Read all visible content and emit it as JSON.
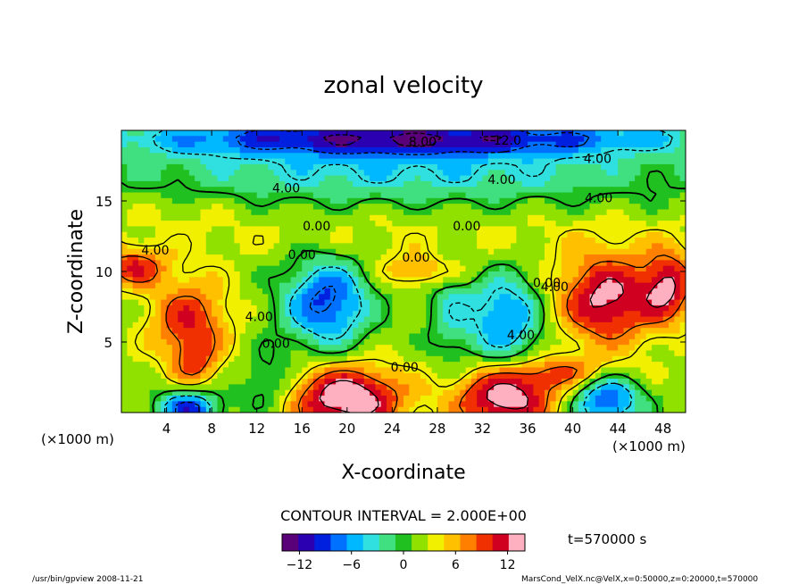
{
  "chart_data": {
    "type": "heatmap",
    "title": "zonal velocity",
    "xlabel": "X-coordinate",
    "ylabel": "Z-coordinate",
    "x_unit_note": "(×1000 m)",
    "y_unit_note": "(×1000 m)",
    "xlim": [
      0,
      50
    ],
    "ylim": [
      0,
      20
    ],
    "x_ticks": [
      4,
      8,
      12,
      16,
      20,
      24,
      28,
      32,
      36,
      40,
      44,
      48
    ],
    "y_ticks": [
      5,
      10,
      15
    ],
    "contour_interval_text": "CONTOUR INTERVAL = 2.000E+00",
    "time_label": "t=570000 s",
    "colorbar": {
      "range": [
        -14,
        14
      ],
      "ticks": [
        -12,
        -6,
        0,
        6,
        12
      ],
      "colors": [
        "#5a0078",
        "#2a00b0",
        "#0020e0",
        "#0070ff",
        "#00b8ff",
        "#30e0e0",
        "#40e080",
        "#20c020",
        "#90e000",
        "#f0f000",
        "#ffc000",
        "#ff8000",
        "#f03000",
        "#d00020",
        "#ffb0c0"
      ]
    },
    "contour_labels": [
      {
        "text": "8.00",
        "x": 26.7,
        "y": 18.9
      },
      {
        "text": "12.0",
        "x": 34.2,
        "y": 19.0
      },
      {
        "text": "4.00",
        "x": 42.2,
        "y": 17.7
      },
      {
        "text": "4.00",
        "x": 33.7,
        "y": 16.2
      },
      {
        "text": "4.00",
        "x": 14.6,
        "y": 15.6
      },
      {
        "text": "4.00",
        "x": 42.3,
        "y": 14.9
      },
      {
        "text": "0.00",
        "x": 17.3,
        "y": 12.9
      },
      {
        "text": "0.00",
        "x": 30.6,
        "y": 12.9
      },
      {
        "text": "4.00",
        "x": 3.0,
        "y": 11.2
      },
      {
        "text": "0.00",
        "x": 16.0,
        "y": 10.9
      },
      {
        "text": "0.00",
        "x": 26.1,
        "y": 10.7
      },
      {
        "text": "0.00",
        "x": 37.7,
        "y": 8.9
      },
      {
        "text": "4.00",
        "x": 38.4,
        "y": 8.6
      },
      {
        "text": "4.00",
        "x": 12.2,
        "y": 6.5
      },
      {
        "text": "0.00",
        "x": 13.7,
        "y": 4.6
      },
      {
        "text": "4.00",
        "x": 35.4,
        "y": 5.2
      },
      {
        "text": "0.00",
        "x": 25.1,
        "y": 2.9
      }
    ],
    "blobs": [
      {
        "x": 6.0,
        "y": 6.5,
        "v": 8.0,
        "rx": 3.5,
        "ry": 3.0
      },
      {
        "x": 6.5,
        "y": 3.3,
        "v": 5.0,
        "rx": 2.0,
        "ry": 1.8
      },
      {
        "x": 1.0,
        "y": 10.3,
        "v": 8.0,
        "rx": 3.0,
        "ry": 1.4
      },
      {
        "x": 18.2,
        "y": 7.8,
        "v": -11.0,
        "rx": 3.8,
        "ry": 3.2
      },
      {
        "x": 34.0,
        "y": 6.7,
        "v": -9.0,
        "rx": 3.5,
        "ry": 3.3
      },
      {
        "x": 43.0,
        "y": 8.0,
        "v": 11.0,
        "rx": 4.5,
        "ry": 3.2
      },
      {
        "x": 48.5,
        "y": 9.0,
        "v": 9.0,
        "rx": 2.2,
        "ry": 2.5
      },
      {
        "x": 20.0,
        "y": 1.0,
        "v": 13.0,
        "rx": 5.0,
        "ry": 2.3
      },
      {
        "x": 34.0,
        "y": 1.0,
        "v": 12.0,
        "rx": 4.5,
        "ry": 2.2
      },
      {
        "x": 6.0,
        "y": 0.3,
        "v": -12.0,
        "rx": 2.6,
        "ry": 1.3
      },
      {
        "x": 43.0,
        "y": 1.0,
        "v": -11.0,
        "rx": 3.0,
        "ry": 2.0
      },
      {
        "x": 13.0,
        "y": 2.0,
        "v": -4.0,
        "rx": 2.5,
        "ry": 2.2
      },
      {
        "x": 29.0,
        "y": 7.5,
        "v": -4.0,
        "rx": 2.0,
        "ry": 4.0
      },
      {
        "x": 27.0,
        "y": 10.0,
        "v": 5.0,
        "rx": 4.0,
        "ry": 1.2
      },
      {
        "x": 25.0,
        "y": 19.5,
        "v": -13.0,
        "rx": 25.0,
        "ry": 1.3
      },
      {
        "x": 25.0,
        "y": 17.0,
        "v": -6.0,
        "rx": 26.0,
        "ry": 2.2
      },
      {
        "x": 25.0,
        "y": 12.5,
        "v": 1.5,
        "rx": 26.0,
        "ry": 2.0
      },
      {
        "x": 40.0,
        "y": 2.8,
        "v": 6.0,
        "rx": 5.0,
        "ry": 1.2
      },
      {
        "x": 5.0,
        "y": 14.5,
        "v": 1.0,
        "rx": 6.0,
        "ry": 1.5
      }
    ],
    "footer_left": "/usr/bin/gpview   2008-11-21",
    "footer_right": "MarsCond_VelX.nc@VelX,x=0:50000,z=0:20000,t=570000"
  }
}
